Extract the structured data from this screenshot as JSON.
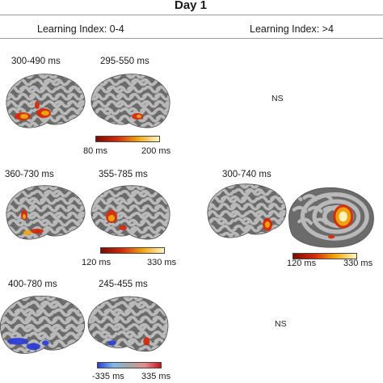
{
  "title": "Day 1",
  "columns": [
    "Learning Index: 0-4",
    "Learning Index: >4"
  ],
  "rows": [
    {
      "left_times": [
        "300-490 ms",
        "295-550 ms"
      ],
      "right_text": "NS",
      "left_colorbar": {
        "min": "80 ms",
        "max": "200 ms",
        "colors": [
          "#7a0c00",
          "#d42a0a",
          "#f2a60e",
          "#fff6c2"
        ]
      }
    },
    {
      "left_times": [
        "360-730 ms",
        "355-785 ms"
      ],
      "right_times": [
        "300-740 ms"
      ],
      "left_colorbar": {
        "min": "120 ms",
        "max": "330 ms",
        "colors": [
          "#7a0c00",
          "#d42a0a",
          "#f2a60e",
          "#fff6c2"
        ]
      },
      "right_colorbar": {
        "min": "120 ms",
        "max": "330 ms",
        "colors": [
          "#7a0c00",
          "#d42a0a",
          "#f2a60e",
          "#fff6c2"
        ]
      }
    },
    {
      "left_times": [
        "400-780 ms",
        "245-455 ms"
      ],
      "right_text": "NS",
      "left_colorbar": {
        "min": "-335 ms",
        "max": "335 ms",
        "colors": [
          "#2b3fd6",
          "#7fb9ee",
          "#a6a6a6",
          "#e88a8a",
          "#c8141e"
        ]
      }
    }
  ],
  "colors": {
    "cortex_dark": "#6b6b6b",
    "cortex_light": "#b9b9b9",
    "hot": "#f2a60e",
    "red": "#d42a0a",
    "cool": "#2b3fd6"
  }
}
